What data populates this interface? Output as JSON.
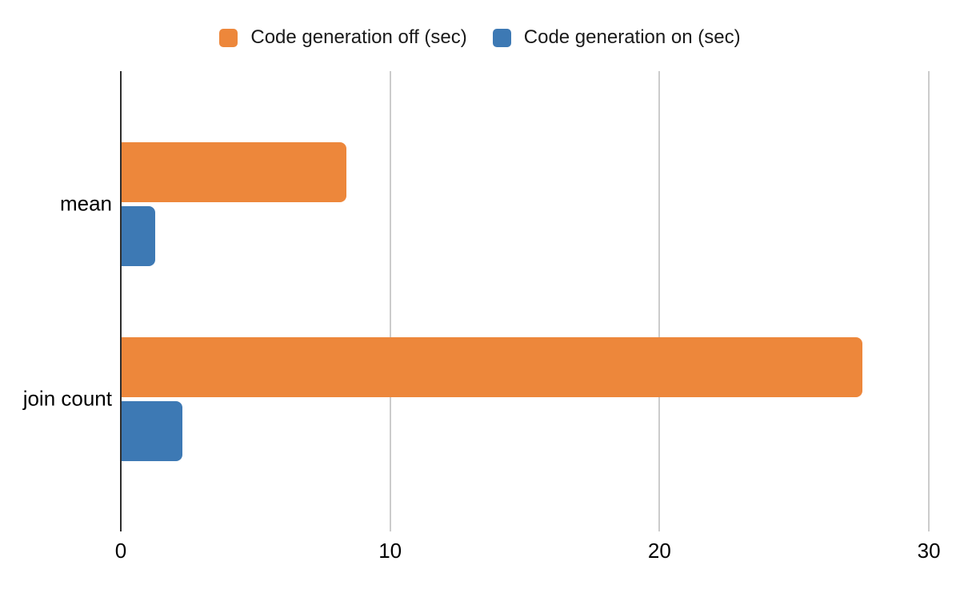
{
  "chart_data": {
    "type": "bar",
    "orientation": "horizontal",
    "title": "",
    "categories": [
      "mean",
      "join count"
    ],
    "series": [
      {
        "name": "Code generation off (sec)",
        "color": "#ED873B",
        "values": [
          8.35,
          27.5
        ]
      },
      {
        "name": "Code generation on (sec)",
        "color": "#3D79B4",
        "values": [
          1.25,
          2.25
        ]
      }
    ],
    "x_ticks": [
      0,
      10,
      20,
      30
    ],
    "xlim": [
      0,
      30.7
    ],
    "ylabel": "",
    "xlabel": "",
    "grid": "vertical",
    "legend_position": "top-center",
    "colors": {
      "gridline": "#cccccc",
      "axis_line": "#2e2e2e",
      "text": "#000000",
      "background": "#ffffff"
    }
  }
}
